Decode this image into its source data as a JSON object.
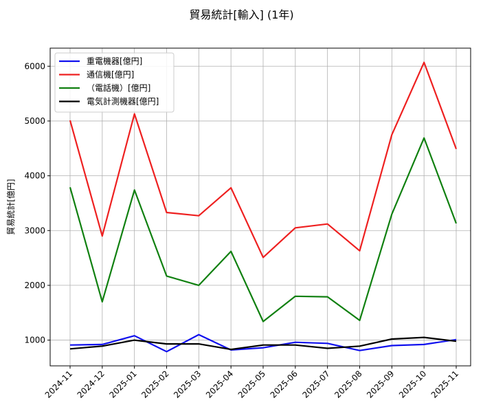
{
  "chart_data": {
    "type": "line",
    "title": "貿易統計[輸入] (1年)",
    "xlabel": "",
    "ylabel": "貿易統計[億円]",
    "ylim": [
      530,
      6330
    ],
    "yticks": [
      1000,
      2000,
      3000,
      4000,
      5000,
      6000
    ],
    "grid": true,
    "legend_position": "upper left",
    "categories": [
      "2024-11",
      "2024-12",
      "2025-01",
      "2025-02",
      "2025-03",
      "2025-04",
      "2025-05",
      "2025-06",
      "2025-07",
      "2025-08",
      "2025-09",
      "2025-10",
      "2025-11"
    ],
    "series": [
      {
        "name": "重電機器[億円]",
        "color": "#1010ee",
        "values": [
          910,
          920,
          1080,
          790,
          1100,
          820,
          860,
          960,
          940,
          810,
          900,
          920,
          1010
        ]
      },
      {
        "name": "通信機[億円]",
        "color": "#ee2020",
        "values": [
          5010,
          2900,
          5130,
          3330,
          3270,
          3780,
          2510,
          3050,
          3120,
          2630,
          4750,
          6070,
          4490
        ]
      },
      {
        "name": "（電話機）[億円]",
        "color": "#108010",
        "values": [
          3790,
          1700,
          3740,
          2170,
          2000,
          2620,
          1340,
          1800,
          1790,
          1360,
          3300,
          4690,
          3130
        ]
      },
      {
        "name": "電気計測機器[億円]",
        "color": "#000000",
        "values": [
          840,
          890,
          1000,
          930,
          930,
          830,
          910,
          910,
          850,
          890,
          1020,
          1050,
          980
        ]
      }
    ]
  }
}
